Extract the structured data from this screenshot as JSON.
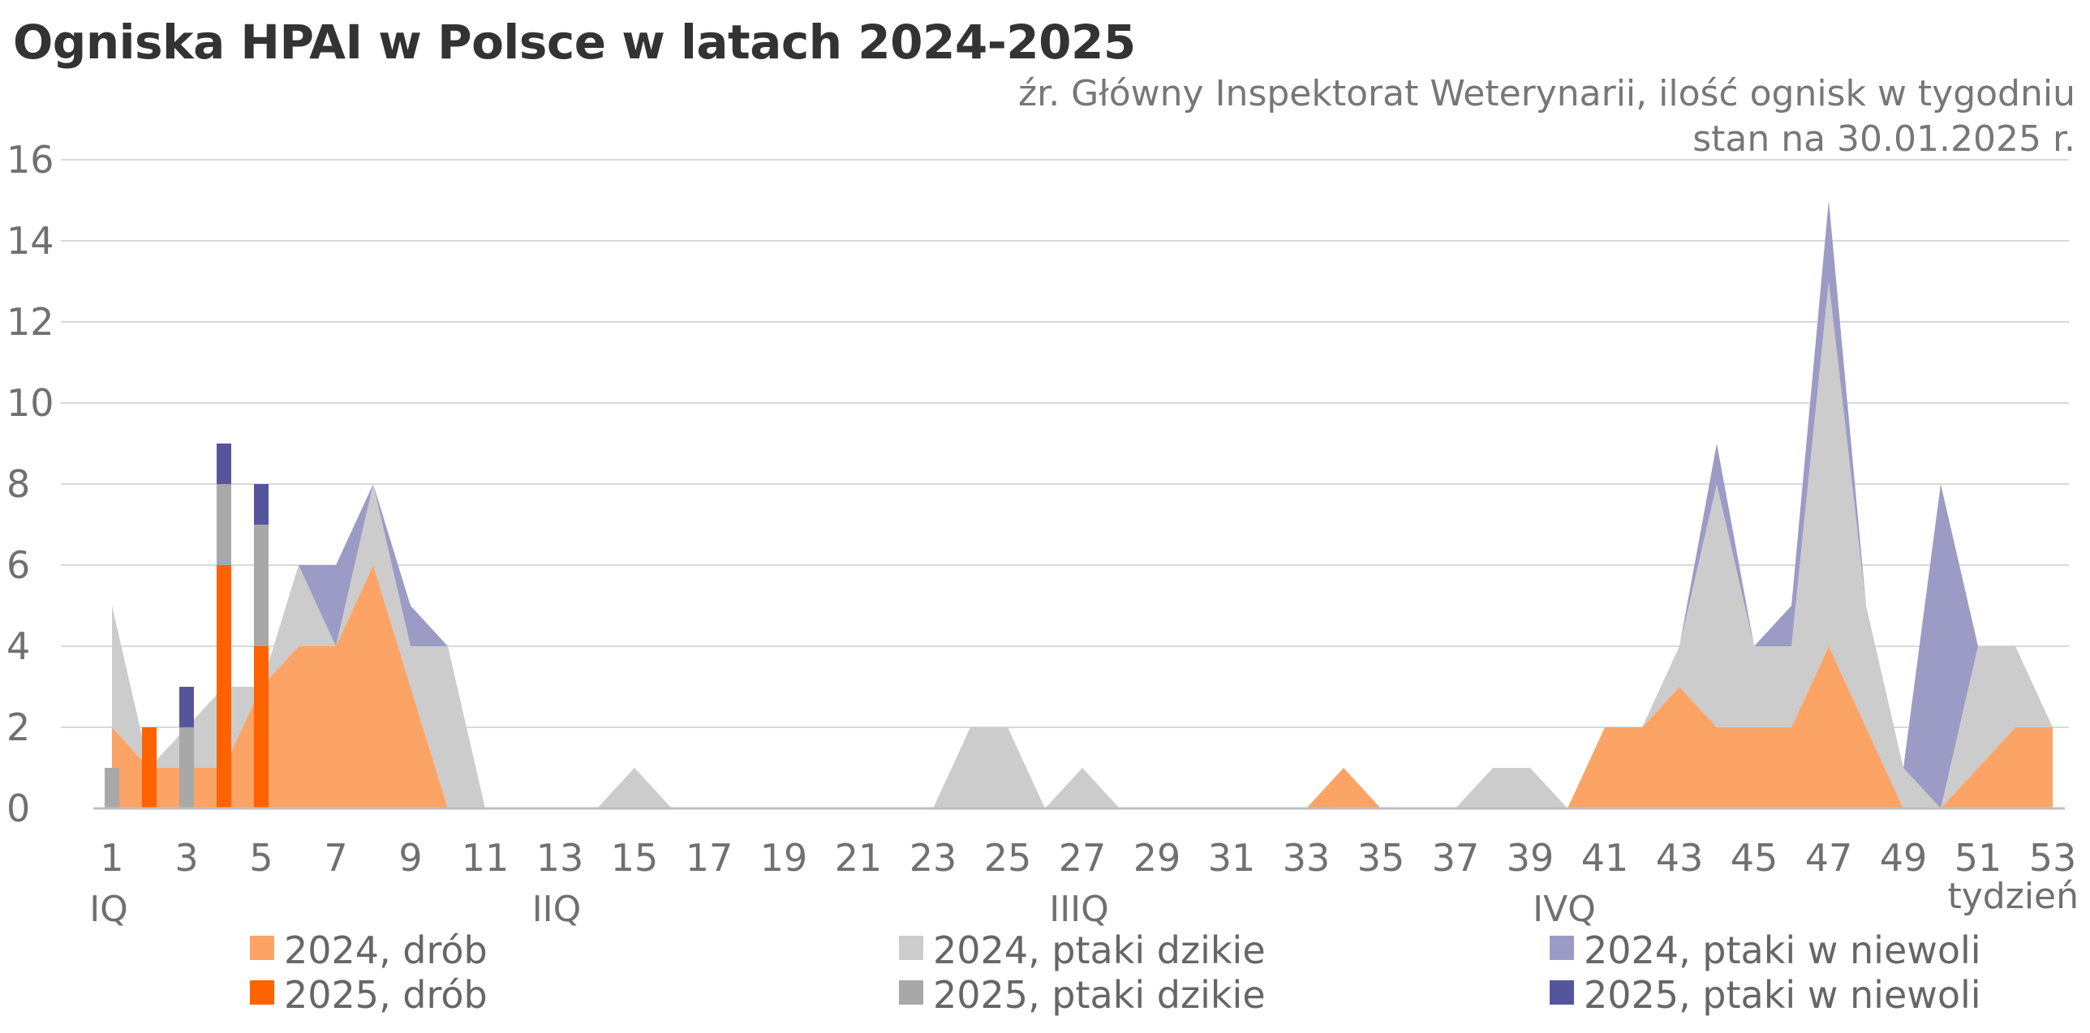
{
  "title": "Ogniska HPAI w Polsce w latach 2024-2025",
  "subtitle_lines": [
    "źr. Główny Inspektorat Weterynarii, ilość ognisk w tygodniu",
    "stan na 30.01.2025 r."
  ],
  "colors": {
    "poultry_2024": "#FCA466",
    "wild_2024": "#CCCCCC",
    "captive_2024": "#9B9BC6",
    "poultry_2025": "#FF6200",
    "wild_2025": "#A8A8A8",
    "captive_2025": "#55559E"
  },
  "chart_data": {
    "type": "area",
    "xlabel": "tydzień",
    "ylabel": "",
    "ylim": [
      0,
      16
    ],
    "yticks": [
      0,
      2,
      4,
      6,
      8,
      10,
      12,
      14,
      16
    ],
    "xlim": [
      1,
      53
    ],
    "xticks": [
      1,
      3,
      5,
      7,
      9,
      11,
      13,
      15,
      17,
      19,
      21,
      23,
      25,
      27,
      29,
      31,
      33,
      35,
      37,
      39,
      41,
      43,
      45,
      47,
      49,
      51,
      53
    ],
    "quarter_labels": [
      {
        "label": "IQ",
        "week": 1
      },
      {
        "label": "IIQ",
        "week": 13
      },
      {
        "label": "IIIQ",
        "week": 27
      },
      {
        "label": "IVQ",
        "week": 40
      }
    ],
    "grid": true,
    "legend_position": "bottom",
    "weeks": [
      1,
      2,
      3,
      4,
      5,
      6,
      7,
      8,
      9,
      10,
      11,
      12,
      13,
      14,
      15,
      16,
      17,
      18,
      19,
      20,
      21,
      22,
      23,
      24,
      25,
      26,
      27,
      28,
      29,
      30,
      31,
      32,
      33,
      34,
      35,
      36,
      37,
      38,
      39,
      40,
      41,
      42,
      43,
      44,
      45,
      46,
      47,
      48,
      49,
      50,
      51,
      52,
      53
    ],
    "series": [
      {
        "name": "2024, drób",
        "type": "area",
        "values": [
          2,
          1,
          1,
          1,
          3,
          4,
          4,
          6,
          3,
          0,
          0,
          0,
          0,
          0,
          0,
          0,
          0,
          0,
          0,
          0,
          0,
          0,
          0,
          0,
          0,
          0,
          0,
          0,
          0,
          0,
          0,
          0,
          0,
          1,
          0,
          0,
          0,
          0,
          0,
          0,
          2,
          2,
          3,
          2,
          2,
          2,
          4,
          2,
          0,
          0,
          1,
          2,
          2
        ]
      },
      {
        "name": "2024, ptaki dzikie",
        "type": "area",
        "values": [
          3,
          0,
          1,
          2,
          0,
          2,
          0,
          2,
          1,
          4,
          0,
          0,
          0,
          0,
          1,
          0,
          0,
          0,
          0,
          0,
          0,
          0,
          0,
          2,
          2,
          0,
          1,
          0,
          0,
          0,
          0,
          0,
          0,
          0,
          0,
          0,
          0,
          1,
          1,
          0,
          0,
          0,
          1,
          6,
          2,
          2,
          9,
          3,
          1,
          0,
          3,
          2,
          0
        ]
      },
      {
        "name": "2024, ptaki w niewoli",
        "type": "area",
        "values": [
          0,
          0,
          0,
          0,
          0,
          0,
          2,
          0,
          1,
          0,
          0,
          0,
          0,
          0,
          0,
          0,
          0,
          0,
          0,
          0,
          0,
          0,
          0,
          0,
          0,
          0,
          0,
          0,
          0,
          0,
          0,
          0,
          0,
          0,
          0,
          0,
          0,
          0,
          0,
          0,
          0,
          0,
          0,
          1,
          0,
          1,
          2,
          0,
          0,
          8,
          0,
          0,
          0
        ]
      },
      {
        "name": "2025, drób",
        "type": "bar",
        "values": [
          0,
          2,
          0,
          6,
          4
        ]
      },
      {
        "name": "2025, ptaki dzikie",
        "type": "bar",
        "values": [
          1,
          0,
          2,
          2,
          3
        ]
      },
      {
        "name": "2025, ptaki w niewoli",
        "type": "bar",
        "values": [
          0,
          0,
          1,
          1,
          1
        ]
      }
    ]
  }
}
